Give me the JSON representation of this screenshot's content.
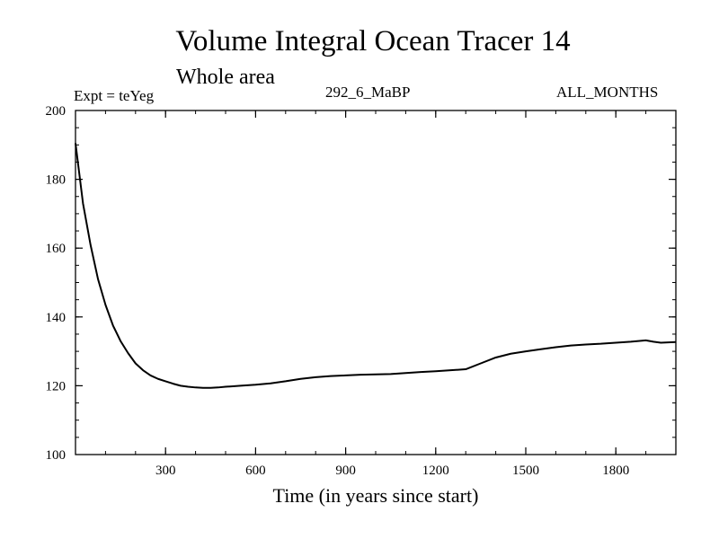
{
  "chart_data": {
    "type": "line",
    "title": "Volume Integral Ocean Tracer 14",
    "subtitle": "Whole area",
    "experiment_label": "Expt = teYeg",
    "run_label": "292_6_MaBP",
    "months_label": "ALL_MONTHS",
    "xlabel": "Time (in years since start)",
    "ylabel": "",
    "xlim": [
      0,
      2000
    ],
    "ylim": [
      100,
      200
    ],
    "xticks": [
      300,
      600,
      900,
      1200,
      1500,
      1800
    ],
    "yticks": [
      100,
      120,
      140,
      160,
      180,
      200
    ],
    "grid": false,
    "series": [
      {
        "name": "Tracer 14",
        "x": [
          0,
          25,
          50,
          75,
          100,
          125,
          150,
          175,
          200,
          225,
          250,
          275,
          300,
          325,
          350,
          375,
          400,
          425,
          450,
          475,
          500,
          550,
          600,
          650,
          700,
          750,
          800,
          850,
          900,
          950,
          1000,
          1050,
          1100,
          1150,
          1200,
          1250,
          1300,
          1350,
          1400,
          1450,
          1500,
          1550,
          1600,
          1650,
          1700,
          1750,
          1800,
          1850,
          1900,
          1925,
          1950,
          1975,
          2000
        ],
        "values": [
          190.5,
          173,
          161,
          151,
          143.5,
          137.5,
          133,
          129.5,
          126.5,
          124.5,
          123,
          122,
          121.3,
          120.6,
          120,
          119.7,
          119.5,
          119.4,
          119.4,
          119.5,
          119.7,
          120,
          120.3,
          120.7,
          121.3,
          122,
          122.5,
          122.8,
          123,
          123.2,
          123.3,
          123.4,
          123.7,
          124,
          124.2,
          124.5,
          124.8,
          126.5,
          128.2,
          129.3,
          130,
          130.6,
          131.2,
          131.7,
          132,
          132.2,
          132.5,
          132.8,
          133.2,
          132.8,
          132.5,
          132.6,
          132.7
        ]
      }
    ]
  }
}
